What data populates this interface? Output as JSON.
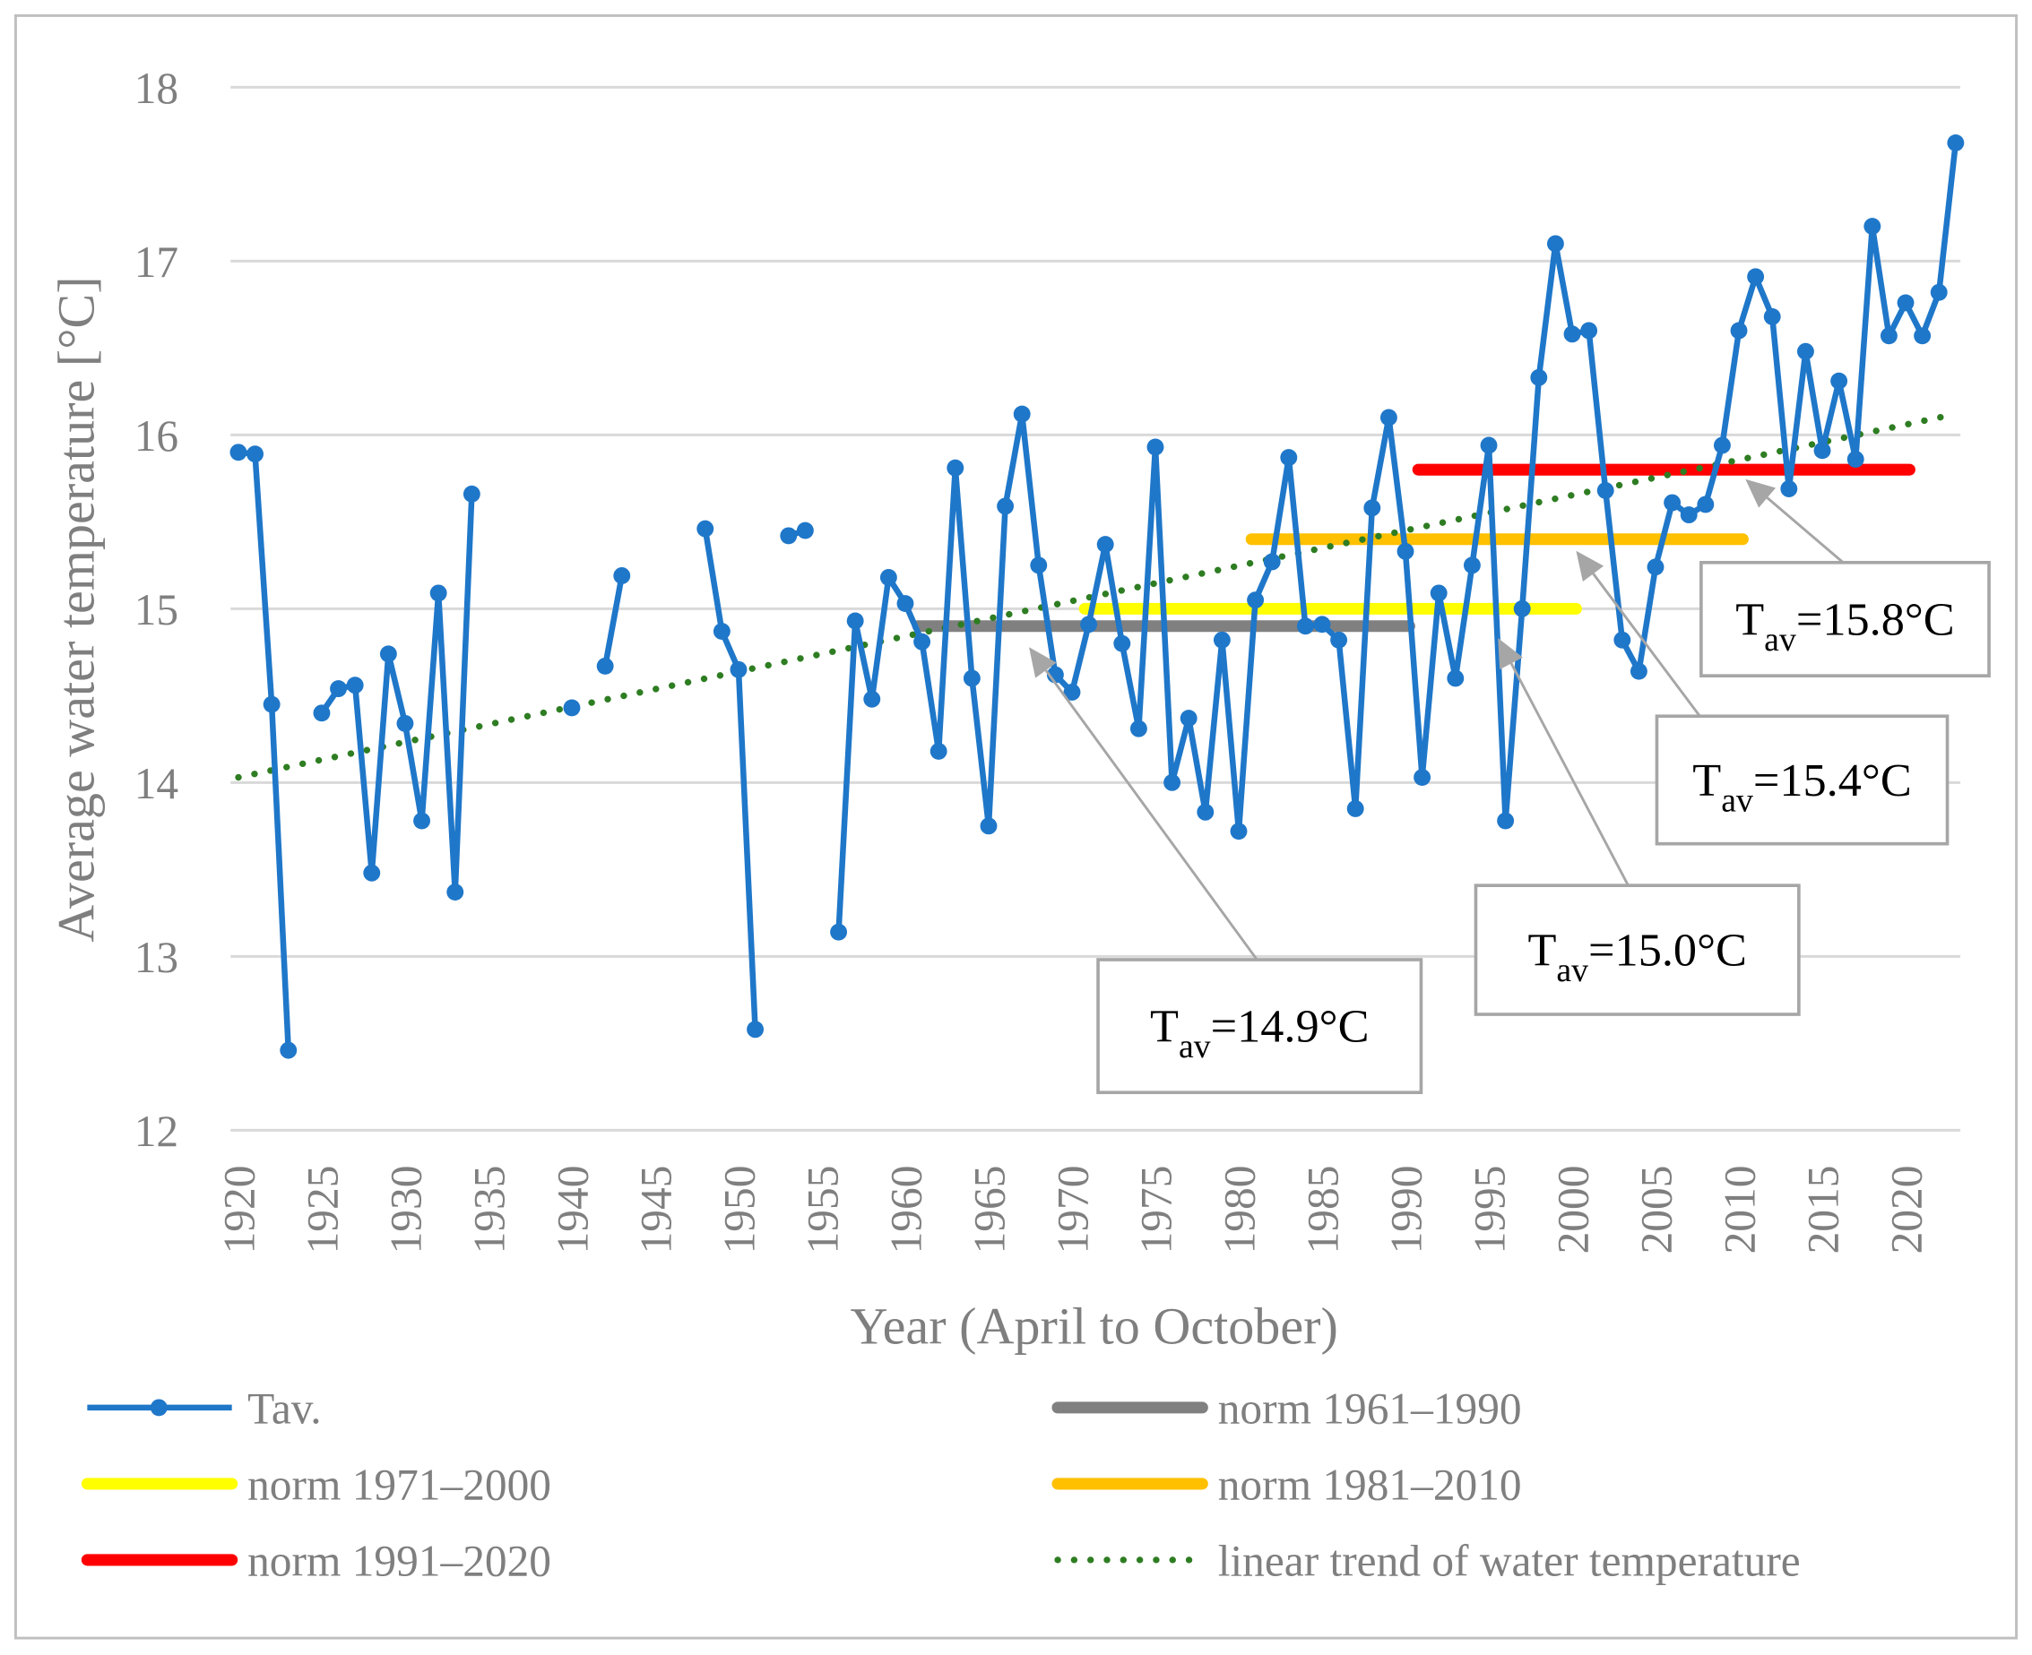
{
  "chart_data": {
    "type": "line",
    "title": "",
    "xlabel": "Year (April to October)",
    "ylabel": "Average water temperature [°C]",
    "xlim": [
      1920,
      2023
    ],
    "ylim": [
      12,
      18
    ],
    "y_ticks": [
      "12",
      "13",
      "14",
      "15",
      "16",
      "17",
      "18"
    ],
    "x_ticks": [
      "1920",
      "1925",
      "1930",
      "1935",
      "1940",
      "1945",
      "1950",
      "1955",
      "1960",
      "1965",
      "1970",
      "1975",
      "1980",
      "1985",
      "1990",
      "1995",
      "2000",
      "2005",
      "2010",
      "2015",
      "2020"
    ],
    "grid": true,
    "legend_placement": "bottom",
    "series": [
      {
        "name": "Tav.",
        "color": "#1f77c9",
        "x": [
          1920,
          1921,
          1922,
          1923,
          1924,
          1925,
          1926,
          1927,
          1928,
          1929,
          1930,
          1931,
          1932,
          1933,
          1934,
          1935,
          1936,
          1937,
          1938,
          1939,
          1940,
          1941,
          1942,
          1943,
          1944,
          1945,
          1946,
          1947,
          1948,
          1949,
          1950,
          1951,
          1952,
          1953,
          1954,
          1955,
          1956,
          1957,
          1958,
          1959,
          1960,
          1961,
          1962,
          1963,
          1964,
          1965,
          1966,
          1967,
          1968,
          1969,
          1970,
          1971,
          1972,
          1973,
          1974,
          1975,
          1976,
          1977,
          1978,
          1979,
          1980,
          1981,
          1982,
          1983,
          1984,
          1985,
          1986,
          1987,
          1988,
          1989,
          1990,
          1991,
          1992,
          1993,
          1994,
          1995,
          1996,
          1997,
          1998,
          1999,
          2000,
          2001,
          2002,
          2003,
          2004,
          2005,
          2006,
          2007,
          2008,
          2009,
          2010,
          2011,
          2012,
          2013,
          2014,
          2015,
          2016,
          2017,
          2018,
          2019,
          2020,
          2021,
          2022,
          2023
        ],
        "values": [
          15.9,
          15.89,
          14.45,
          12.46,
          null,
          14.4,
          14.54,
          14.56,
          13.48,
          14.74,
          14.34,
          13.78,
          15.09,
          13.37,
          15.66,
          null,
          null,
          null,
          null,
          null,
          14.43,
          null,
          14.67,
          15.19,
          null,
          null,
          null,
          null,
          15.46,
          14.87,
          14.65,
          12.58,
          null,
          15.42,
          15.45,
          null,
          13.14,
          14.93,
          14.48,
          15.18,
          15.03,
          14.81,
          14.18,
          15.81,
          14.6,
          13.75,
          15.59,
          16.12,
          15.25,
          14.62,
          14.52,
          14.91,
          15.37,
          14.8,
          14.31,
          15.93,
          14.0,
          14.37,
          13.83,
          14.82,
          13.72,
          15.05,
          15.27,
          15.87,
          14.9,
          14.91,
          14.82,
          13.85,
          15.58,
          16.1,
          15.33,
          14.03,
          15.09,
          14.6,
          15.25,
          15.94,
          13.78,
          15.0,
          16.33,
          17.1,
          16.58,
          16.6,
          15.68,
          14.82,
          14.64,
          15.24,
          15.61,
          15.54,
          15.6,
          15.94,
          16.6,
          16.91,
          16.68,
          15.69,
          16.48,
          15.91,
          16.31,
          15.86,
          17.2,
          16.57,
          16.76,
          16.57,
          16.82,
          17.68
        ]
      }
    ],
    "norms": [
      {
        "name": "norm 1961–1990",
        "from": 1961,
        "to": 1990,
        "value": 14.9,
        "color": "#808080",
        "annotation_sub": "av",
        "annotation_main": "T",
        "annotation_value": "=14.9°C"
      },
      {
        "name": "norm 1971–2000",
        "from": 1971,
        "to": 2000,
        "value": 15.0,
        "color": "#ffff00",
        "annotation_sub": "av",
        "annotation_main": "T",
        "annotation_value": "=15.0°C"
      },
      {
        "name": "norm 1981–2010",
        "from": 1981,
        "to": 2010,
        "value": 15.4,
        "color": "#ffc000",
        "annotation_sub": "av",
        "annotation_main": "T",
        "annotation_value": "=15.4°C"
      },
      {
        "name": "norm 1991–2020",
        "from": 1991,
        "to": 2020,
        "value": 15.8,
        "color": "#ff0000",
        "annotation_sub": "av",
        "annotation_main": "T",
        "annotation_value": "=15.8°C"
      }
    ],
    "trend": {
      "name": "linear trend of water temperature",
      "color": "#2e7d22",
      "x": [
        1920,
        2023
      ],
      "values": [
        14.03,
        16.12
      ]
    }
  }
}
